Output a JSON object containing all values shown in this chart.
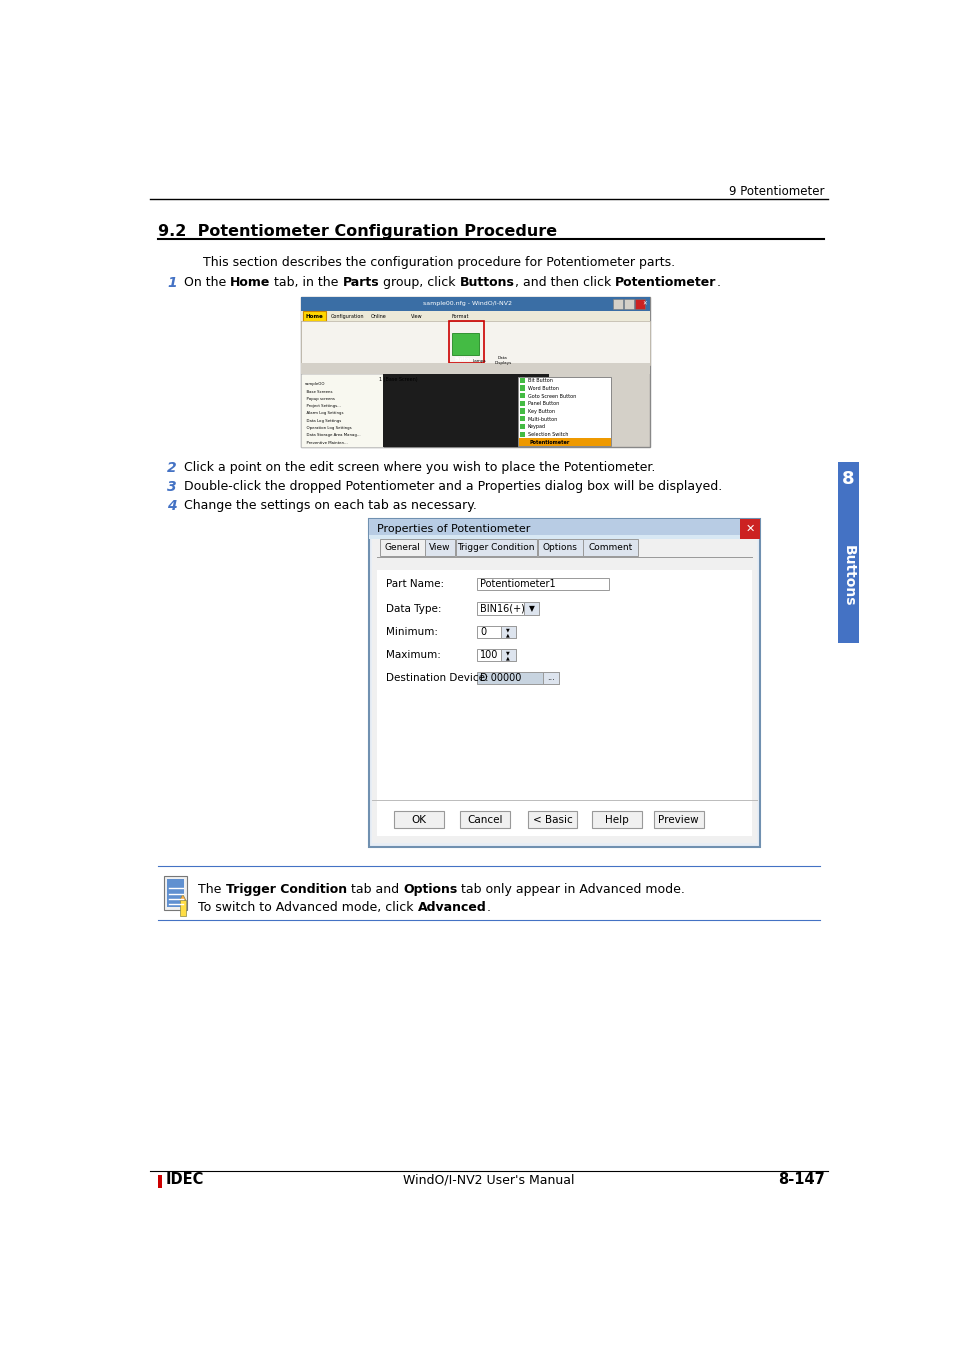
{
  "page_header_right": "9 Potentiometer",
  "section_title": "9.2  Potentiometer Configuration Procedure",
  "intro_text": "This section describes the configuration procedure for Potentiometer parts.",
  "step1_text": [
    {
      "text": "On the ",
      "bold": false
    },
    {
      "text": "Home",
      "bold": true
    },
    {
      "text": " tab, in the ",
      "bold": false
    },
    {
      "text": "Parts",
      "bold": true
    },
    {
      "text": " group, click ",
      "bold": false
    },
    {
      "text": "Buttons",
      "bold": true
    },
    {
      "text": ", and then click ",
      "bold": false
    },
    {
      "text": "Potentiometer",
      "bold": true
    },
    {
      "text": ".",
      "bold": false
    }
  ],
  "step2_text": "Click a point on the edit screen where you wish to place the Potentiometer.",
  "step3_text": "Double-click the dropped Potentiometer and a Properties dialog box will be displayed.",
  "step4_text": "Change the settings on each tab as necessary.",
  "note_line1": [
    {
      "text": "The ",
      "bold": false
    },
    {
      "text": "Trigger Condition",
      "bold": true
    },
    {
      "text": " tab and ",
      "bold": false
    },
    {
      "text": "Options",
      "bold": true
    },
    {
      "text": " tab only appear in Advanced mode.",
      "bold": false
    }
  ],
  "note_line2": [
    {
      "text": "To switch to Advanced mode, click ",
      "bold": false
    },
    {
      "text": "Advanced",
      "bold": true
    },
    {
      "text": ".",
      "bold": false
    }
  ],
  "footer_left": "IDEC",
  "footer_center": "WindO/I-NV2 User's Manual",
  "footer_right": "8-147",
  "sidebar_text": "Buttons",
  "sidebar_num": "8",
  "bg_color": "#ffffff",
  "step_num_color": "#4472c4",
  "sidebar_bg": "#4472c4",
  "sidebar_text_color": "#ffffff"
}
